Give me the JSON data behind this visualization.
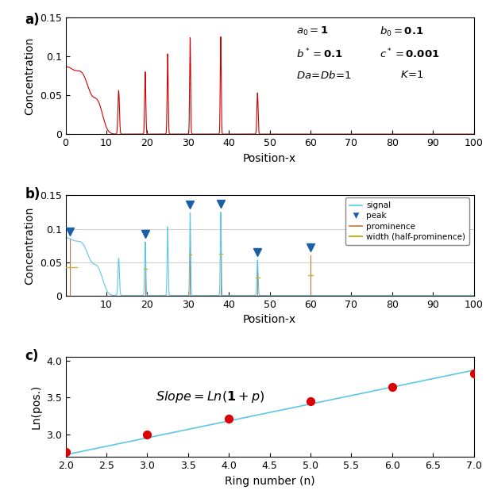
{
  "fig_width": 6.12,
  "fig_height": 6.23,
  "dpi": 100,
  "panel_a": {
    "xlim": [
      0,
      100
    ],
    "ylim": [
      0,
      0.15
    ],
    "yticks": [
      0,
      0.05,
      0.1,
      0.15
    ],
    "xticks": [
      0,
      10,
      20,
      30,
      40,
      50,
      60,
      70,
      80,
      90,
      100
    ],
    "xlabel": "Position-x",
    "ylabel": "Concentration",
    "line_color": "#cc0000"
  },
  "panel_b": {
    "xlim": [
      0,
      100
    ],
    "ylim": [
      0,
      0.15
    ],
    "yticks": [
      0,
      0.05,
      0.1,
      0.15
    ],
    "xticks": [
      10,
      20,
      30,
      40,
      50,
      60,
      70,
      80,
      90,
      100
    ],
    "xlabel": "Position-x",
    "ylabel": "Concentration",
    "signal_color": "#5bc8e8",
    "prominence_color": "#c07840",
    "width_color": "#c8b030",
    "peak_marker_color": "#1a5fa8"
  },
  "panel_c": {
    "xlim": [
      2,
      7
    ],
    "ylim": [
      2.7,
      4.05
    ],
    "yticks": [
      3.0,
      3.5,
      4.0
    ],
    "xticks": [
      2,
      2.5,
      3,
      3.5,
      4,
      4.5,
      5,
      5.5,
      6,
      6.5,
      7
    ],
    "xlabel": "Ring number (n)",
    "ylabel": "Ln(pos.)",
    "line_color": "#5bc8e8",
    "dot_color": "#dd0000",
    "dots_x": [
      2,
      3,
      4,
      5,
      6,
      7
    ],
    "dots_y": [
      2.77,
      3.0,
      3.22,
      3.45,
      3.64,
      3.83
    ],
    "line_x": [
      2,
      7
    ],
    "line_y": [
      2.73,
      3.87
    ]
  },
  "background_color": "#ffffff"
}
